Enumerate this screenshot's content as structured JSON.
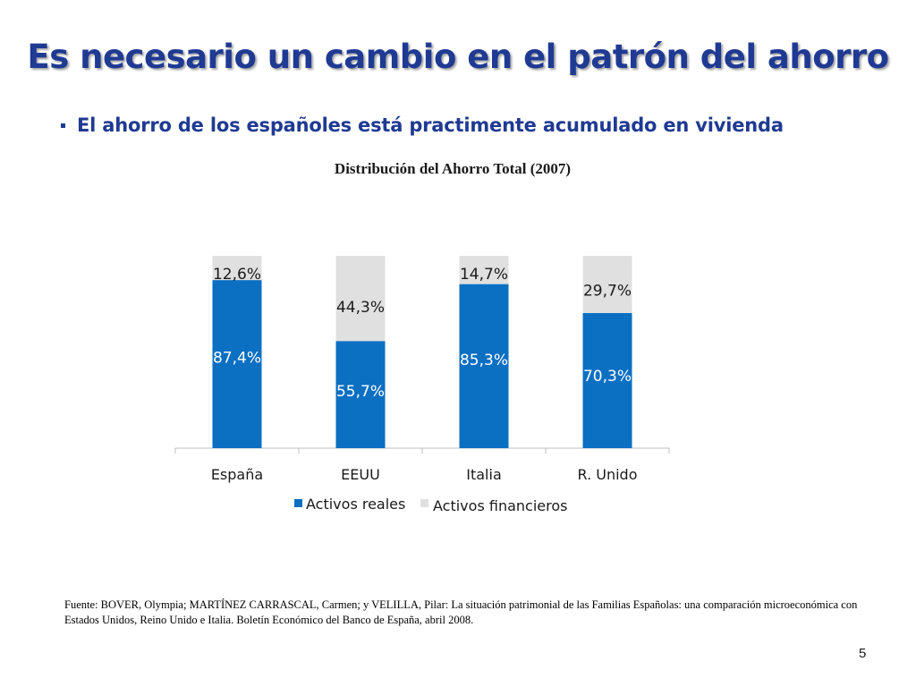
{
  "slide": {
    "title": "Es necesario un cambio en el patrón del ahorro",
    "bullet": "El ahorro de los españoles está practimente acumulado en vivienda",
    "footnote": "Fuente: BOVER, Olympia; MARTÍNEZ CARRASCAL, Carmen; y VELILLA, Pilar: La situación patrimonial de las Familias Españolas: una comparación microeconómica con Estados Unidos, Reino Unido e Italia. Boletín Económico del Banco de España, abril 2008.",
    "page_number": "5"
  },
  "colors": {
    "title": "#1f3a93",
    "activos_reales": "#0b6fc2",
    "activos_financieros": "#e0e0e0"
  },
  "chart_data": {
    "type": "bar",
    "stacked": true,
    "title": "Distribución del Ahorro Total (2007)",
    "categories": [
      "España",
      "EEUU",
      "Italia",
      "R. Unido"
    ],
    "series": [
      {
        "name": "Activos reales",
        "values": [
          87.4,
          55.7,
          85.3,
          70.3
        ],
        "labels": [
          "87,4%",
          "55,7%",
          "85,3%",
          "70,3%"
        ],
        "color": "#0b6fc2"
      },
      {
        "name": "Activos financieros",
        "values": [
          12.6,
          44.3,
          14.7,
          29.7
        ],
        "labels": [
          "12,6%",
          "44,3%",
          "14,7%",
          "29,7%"
        ],
        "color": "#e0e0e0"
      }
    ],
    "ylim": [
      0,
      100
    ],
    "legend": "bottom",
    "grid": false
  }
}
